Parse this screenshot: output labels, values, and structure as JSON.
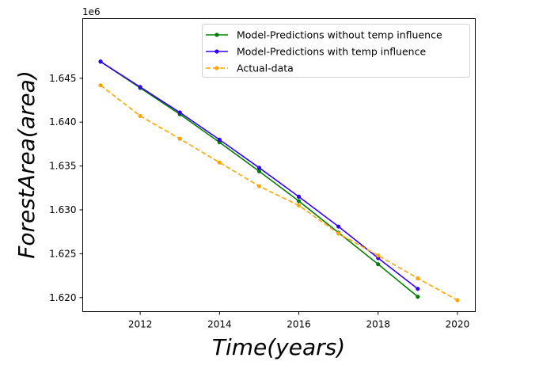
{
  "chart_data": {
    "type": "line",
    "xlabel": "$Time(years)$",
    "ylabel": "$ForestArea(area)$",
    "xlabel_display": "Time(years)",
    "ylabel_display": "ForestArea(area)",
    "y_offset_text": "1e6",
    "xlim": [
      2010.55,
      2020.45
    ],
    "ylim": [
      1.6184,
      1.6518
    ],
    "x_ticks": [
      2012,
      2014,
      2016,
      2018,
      2020
    ],
    "x_tick_labels": [
      "2012",
      "2014",
      "2016",
      "2018",
      "2020"
    ],
    "y_ticks": [
      1.62,
      1.625,
      1.63,
      1.635,
      1.64,
      1.645
    ],
    "y_tick_labels": [
      "1.620",
      "1.625",
      "1.630",
      "1.635",
      "1.640",
      "1.645"
    ],
    "grid": false,
    "legend_position": "top-right",
    "series": [
      {
        "name": "Model-Predictions without temp influence",
        "color": "#008000",
        "linestyle": "solid",
        "marker": "circle",
        "x": [
          2011,
          2012,
          2013,
          2014,
          2015,
          2016,
          2017,
          2018,
          2019
        ],
        "y": [
          1.6469,
          1.6439,
          1.6409,
          1.6377,
          1.6344,
          1.631,
          1.6274,
          1.6238,
          1.6201
        ]
      },
      {
        "name": "Model-Predictions with temp influence",
        "color": "#3300ff",
        "linestyle": "solid",
        "marker": "circle",
        "x": [
          2011,
          2012,
          2013,
          2014,
          2015,
          2016,
          2017,
          2018,
          2019
        ],
        "y": [
          1.6469,
          1.644,
          1.6411,
          1.638,
          1.6348,
          1.6315,
          1.6281,
          1.6245,
          1.621
        ]
      },
      {
        "name": "Actual-data",
        "color": "#ffa500",
        "linestyle": "dashed",
        "marker": "circle",
        "x": [
          2011,
          2012,
          2013,
          2014,
          2015,
          2016,
          2017,
          2018,
          2019,
          2020
        ],
        "y": [
          1.6442,
          1.6407,
          1.6381,
          1.6354,
          1.6327,
          1.6305,
          1.6273,
          1.6248,
          1.6222,
          1.6197
        ]
      }
    ]
  }
}
